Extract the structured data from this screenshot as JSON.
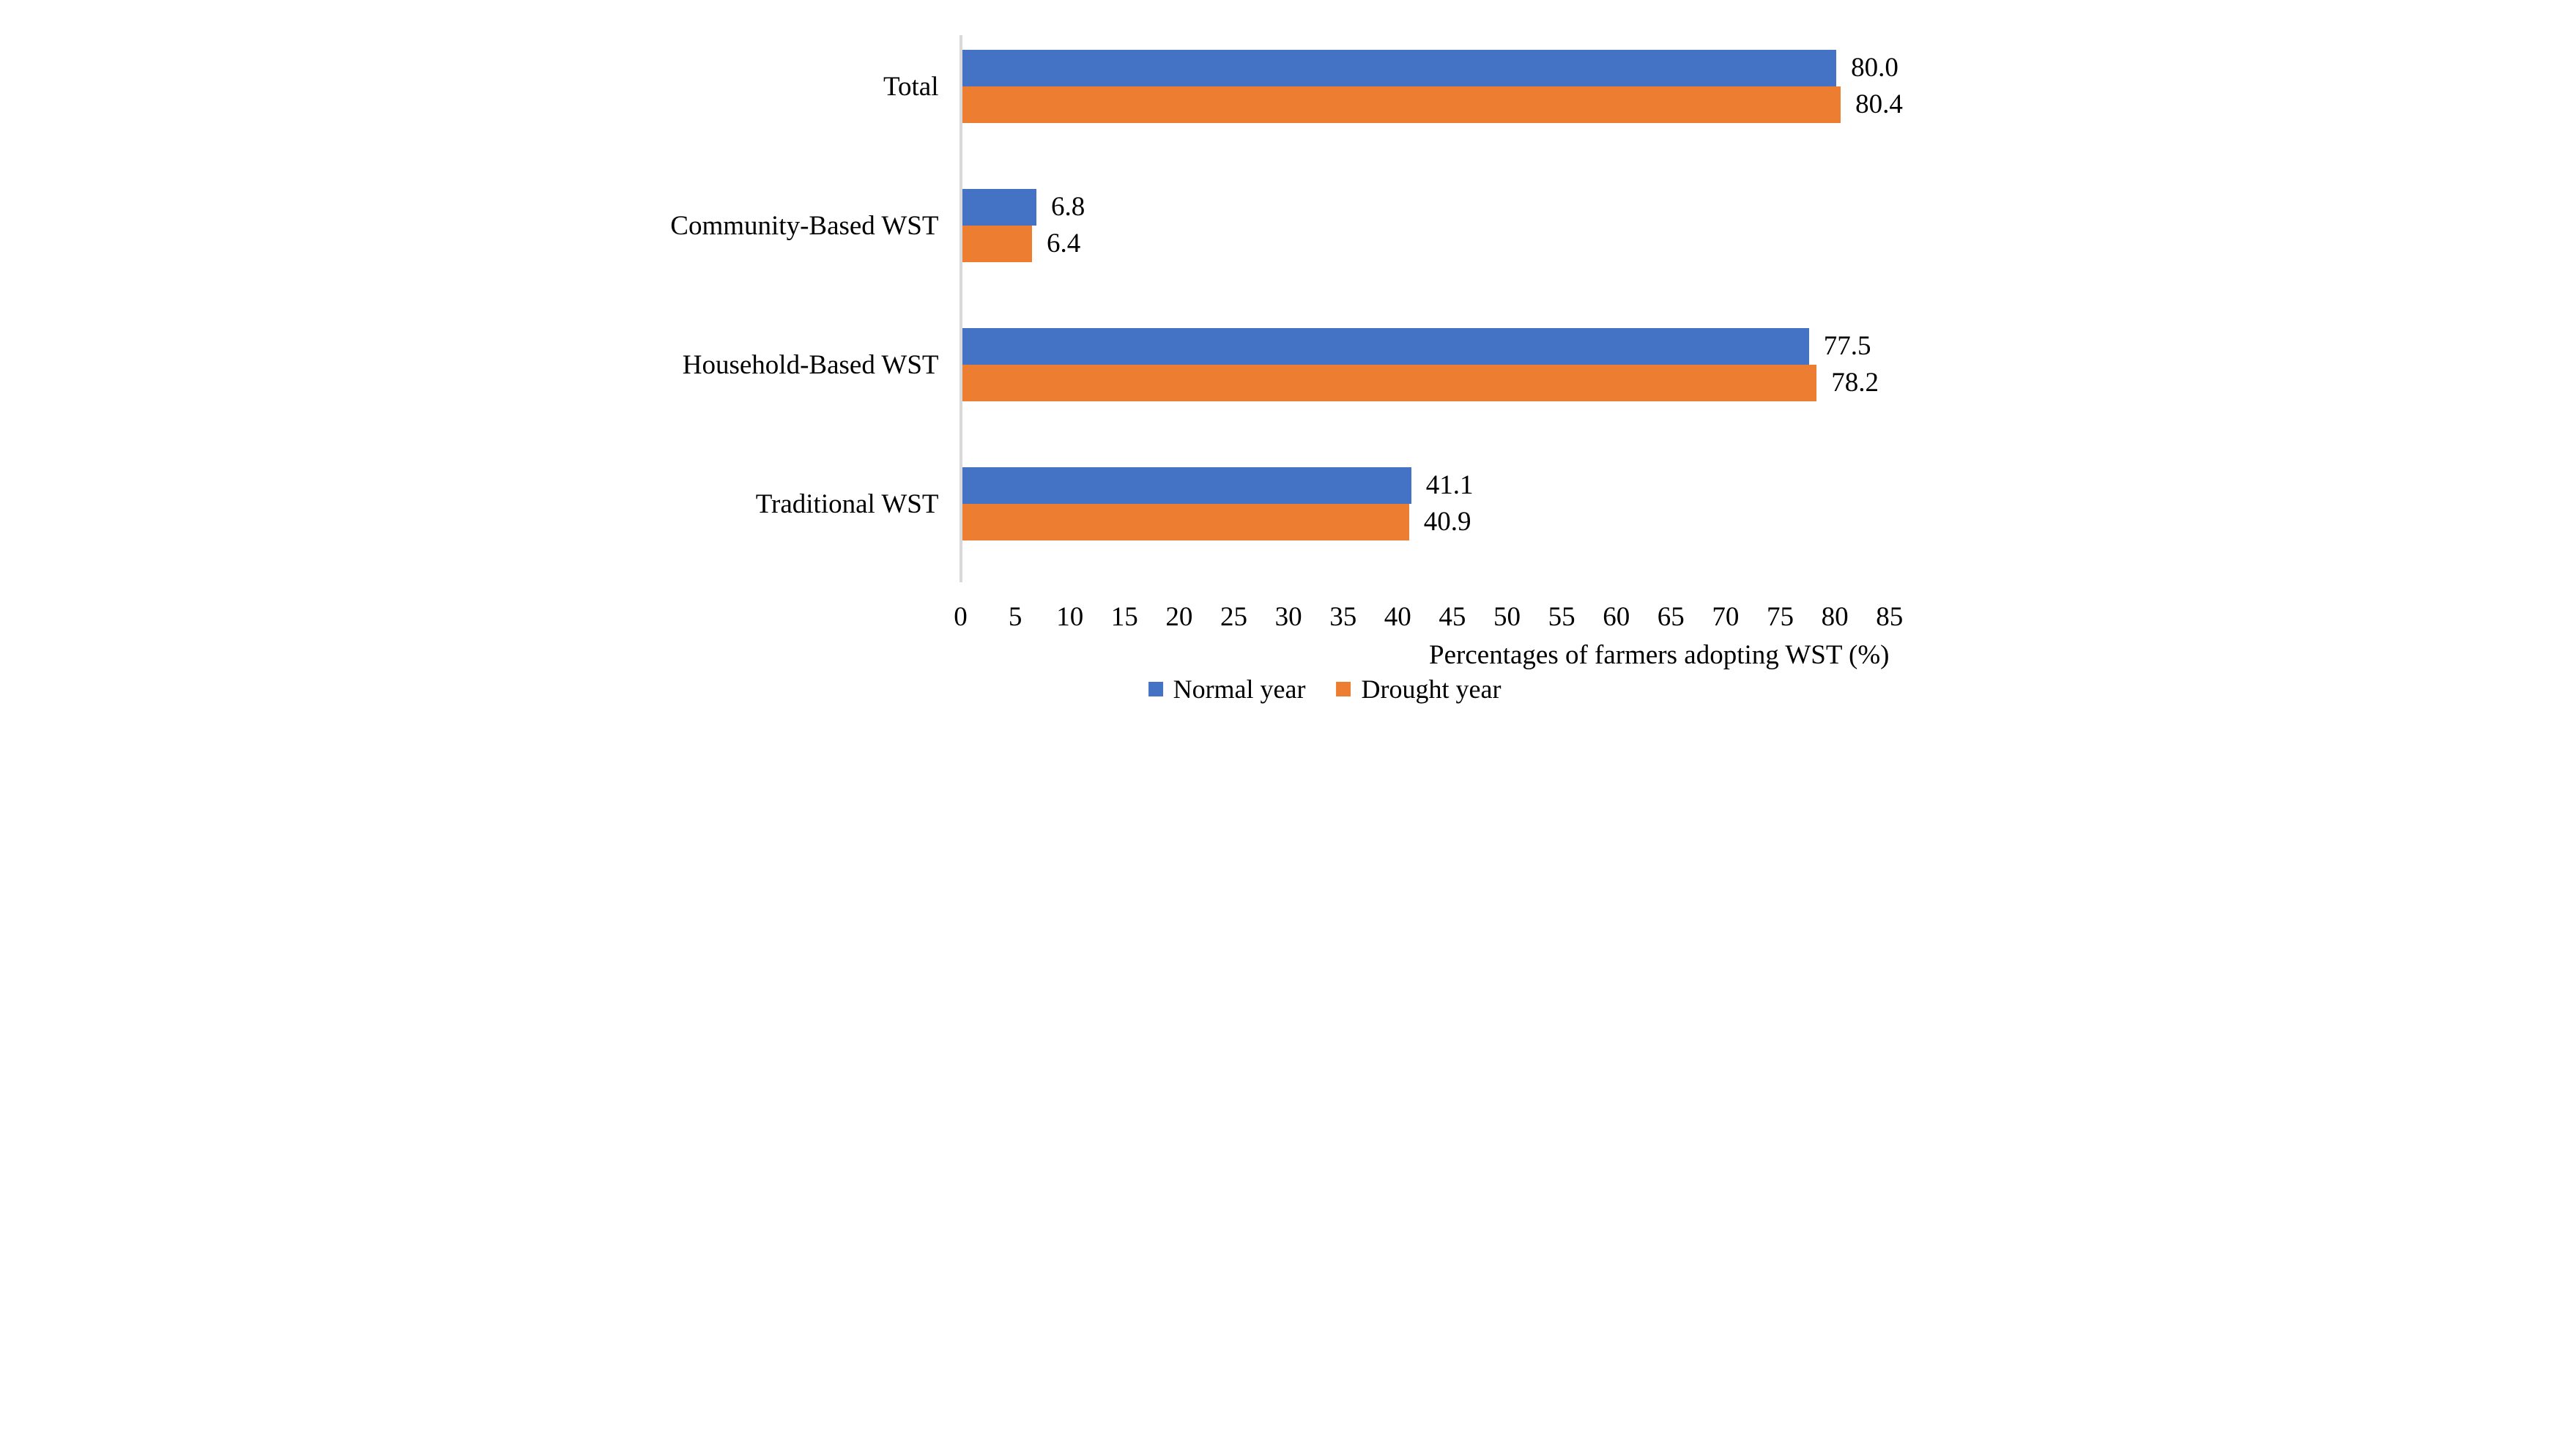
{
  "chart_data": {
    "type": "bar",
    "orientation": "horizontal",
    "title": "",
    "categories": [
      "Total",
      "Community-Based WST",
      "Household-Based WST",
      "Traditional WST"
    ],
    "series": [
      {
        "name": "Normal year",
        "color": "#4472C4",
        "values": [
          80.0,
          6.8,
          77.5,
          41.1
        ],
        "value_labels": [
          "80.0",
          "6.8",
          "77.5",
          "41.1"
        ]
      },
      {
        "name": "Drought year",
        "color": "#ED7D31",
        "values": [
          80.4,
          6.4,
          78.2,
          40.9
        ],
        "value_labels": [
          "80.4",
          "6.4",
          "78.2",
          "40.9"
        ]
      }
    ],
    "xlabel": "Percentages of farmers adopting WST (%)",
    "x_ticks": [
      "0",
      "5",
      "10",
      "15",
      "20",
      "25",
      "30",
      "35",
      "40",
      "45",
      "50",
      "55",
      "60",
      "65",
      "70",
      "75",
      "80",
      "85"
    ],
    "xlim": [
      0,
      85
    ],
    "grid": false,
    "axis_line_color": "#D9D9D9",
    "legend_position": "bottom-center"
  }
}
